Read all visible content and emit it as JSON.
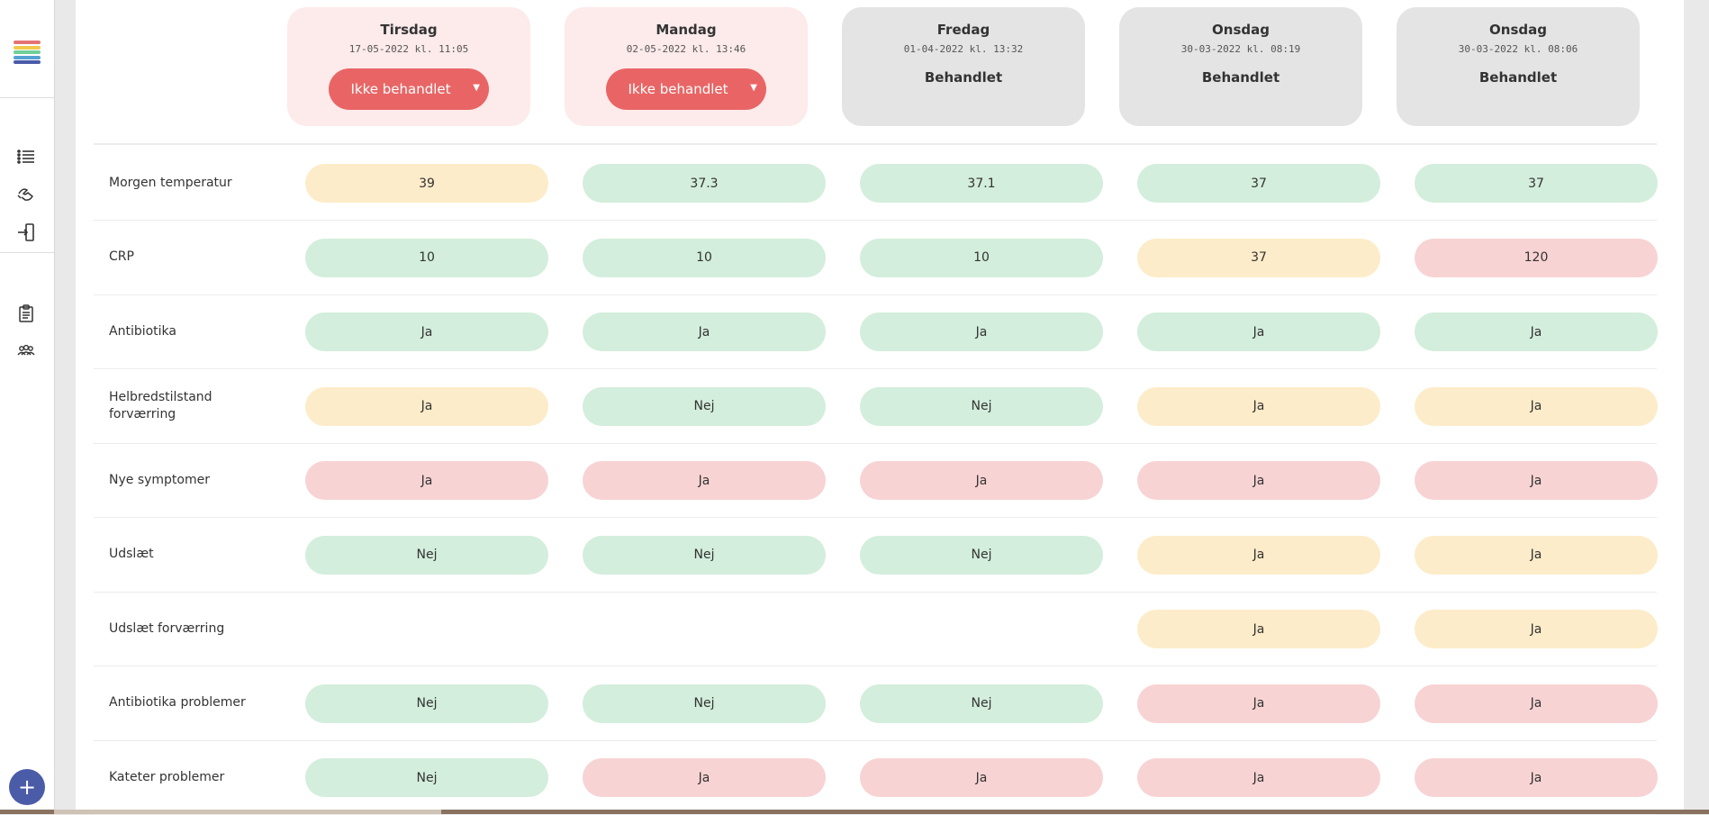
{
  "sidebar": {
    "logo_colors": [
      "#e57373",
      "#f2c94c",
      "#6fcf97",
      "#56a0d3",
      "#4a5ba8"
    ],
    "icons": [
      "list-icon",
      "handshake-icon",
      "logout-icon",
      "clipboard-icon",
      "group-icon"
    ],
    "add_label": "+"
  },
  "columns": [
    {
      "day": "Tirsdag",
      "date": "17-05-2022 kl. 11:05",
      "status": "Ikke behandlet",
      "status_type": "button"
    },
    {
      "day": "Mandag",
      "date": "02-05-2022 kl. 13:46",
      "status": "Ikke behandlet",
      "status_type": "button"
    },
    {
      "day": "Fredag",
      "date": "01-04-2022 kl. 13:32",
      "status": "Behandlet",
      "status_type": "text"
    },
    {
      "day": "Onsdag",
      "date": "30-03-2022 kl. 08:19",
      "status": "Behandlet",
      "status_type": "text"
    },
    {
      "day": "Onsdag",
      "date": "30-03-2022 kl. 08:06",
      "status": "Behandlet",
      "status_type": "text"
    }
  ],
  "rows": [
    {
      "label": "Morgen temperatur",
      "cells": [
        [
          "39",
          "yellow"
        ],
        [
          "37.3",
          "green"
        ],
        [
          "37.1",
          "green"
        ],
        [
          "37",
          "green"
        ],
        [
          "37",
          "green"
        ]
      ]
    },
    {
      "label": "CRP",
      "cells": [
        [
          "10",
          "green"
        ],
        [
          "10",
          "green"
        ],
        [
          "10",
          "green"
        ],
        [
          "37",
          "yellow"
        ],
        [
          "120",
          "red"
        ]
      ]
    },
    {
      "label": "Antibiotika",
      "cells": [
        [
          "Ja",
          "green"
        ],
        [
          "Ja",
          "green"
        ],
        [
          "Ja",
          "green"
        ],
        [
          "Ja",
          "green"
        ],
        [
          "Ja",
          "green"
        ]
      ]
    },
    {
      "label": "Helbredstilstand forværring",
      "cells": [
        [
          "Ja",
          "yellow"
        ],
        [
          "Nej",
          "green"
        ],
        [
          "Nej",
          "green"
        ],
        [
          "Ja",
          "yellow"
        ],
        [
          "Ja",
          "yellow"
        ]
      ]
    },
    {
      "label": "Nye symptomer",
      "cells": [
        [
          "Ja",
          "red"
        ],
        [
          "Ja",
          "red"
        ],
        [
          "Ja",
          "red"
        ],
        [
          "Ja",
          "red"
        ],
        [
          "Ja",
          "red"
        ]
      ]
    },
    {
      "label": "Udslæt",
      "cells": [
        [
          "Nej",
          "green"
        ],
        [
          "Nej",
          "green"
        ],
        [
          "Nej",
          "green"
        ],
        [
          "Ja",
          "yellow"
        ],
        [
          "Ja",
          "yellow"
        ]
      ]
    },
    {
      "label": "Udslæt forværring",
      "cells": [
        [
          "",
          "none"
        ],
        [
          "",
          "none"
        ],
        [
          "",
          "none"
        ],
        [
          "Ja",
          "yellow"
        ],
        [
          "Ja",
          "yellow"
        ]
      ]
    },
    {
      "label": "Antibiotika problemer",
      "cells": [
        [
          "Nej",
          "green"
        ],
        [
          "Nej",
          "green"
        ],
        [
          "Nej",
          "green"
        ],
        [
          "Ja",
          "red"
        ],
        [
          "Ja",
          "red"
        ]
      ]
    },
    {
      "label": "Kateter problemer",
      "cells": [
        [
          "Nej",
          "green"
        ],
        [
          "Ja",
          "red"
        ],
        [
          "Ja",
          "red"
        ],
        [
          "Ja",
          "red"
        ],
        [
          "Ja",
          "red"
        ]
      ]
    }
  ]
}
